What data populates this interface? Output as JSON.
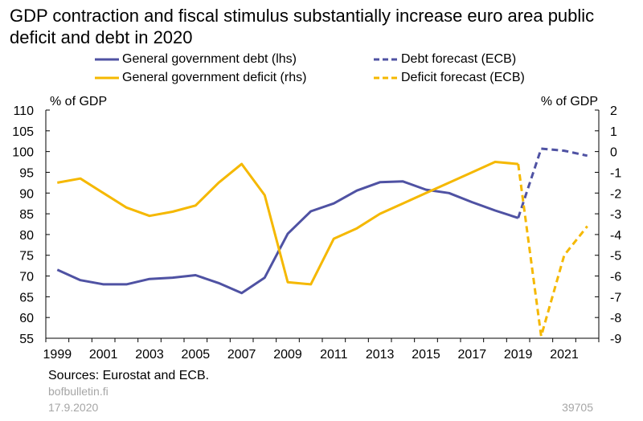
{
  "chart_data": {
    "type": "line",
    "title": "GDP contraction and fiscal stimulus substantially increase euro area public deficit and debt in 2020",
    "left_axis_label": "% of GDP",
    "right_axis_label": "% of GDP",
    "left_ylim": [
      55,
      110
    ],
    "left_ticks": [
      "110",
      "105",
      "100",
      "95",
      "90",
      "85",
      "80",
      "75",
      "70",
      "65",
      "60",
      "55"
    ],
    "right_ylim": [
      -9,
      2
    ],
    "right_ticks": [
      "2",
      "1",
      "0",
      "-1",
      "-2",
      "-3",
      "-4",
      "-5",
      "-6",
      "-7",
      "-8",
      "-9"
    ],
    "xlim": [
      1998.5,
      2022.5
    ],
    "x_ticks": [
      "1999",
      "2001",
      "2003",
      "2005",
      "2007",
      "2009",
      "2011",
      "2013",
      "2015",
      "2017",
      "2019",
      "2021"
    ],
    "grid": false,
    "legend_position": "top",
    "series": [
      {
        "name": "General government debt (lhs)",
        "axis": "left",
        "style": "solid",
        "color": "#4f52a3",
        "x": [
          1999,
          2000,
          2001,
          2002,
          2003,
          2004,
          2005,
          2006,
          2007,
          2008,
          2009,
          2010,
          2011,
          2012,
          2013,
          2014,
          2015,
          2016,
          2017,
          2018,
          2019
        ],
        "values": [
          71.5,
          69.0,
          68.0,
          68.0,
          69.3,
          69.6,
          70.2,
          68.3,
          65.9,
          69.6,
          80.2,
          85.6,
          87.5,
          90.6,
          92.6,
          92.8,
          90.8,
          90.0,
          87.8,
          85.8,
          84.0
        ]
      },
      {
        "name": "General government deficit (rhs)",
        "axis": "right",
        "style": "solid",
        "color": "#f5b800",
        "x": [
          1999,
          2000,
          2001,
          2002,
          2003,
          2004,
          2005,
          2006,
          2007,
          2008,
          2009,
          2010,
          2011,
          2012,
          2013,
          2014,
          2015,
          2016,
          2017,
          2018,
          2019
        ],
        "values": [
          -1.5,
          -1.3,
          -2.0,
          -2.7,
          -3.1,
          -2.9,
          -2.6,
          -1.5,
          -0.6,
          -2.1,
          -6.3,
          -6.4,
          -4.2,
          -3.7,
          -3.0,
          -2.5,
          -2.0,
          -1.5,
          -1.0,
          -0.5,
          -0.6
        ]
      },
      {
        "name": "Debt forecast (ECB)",
        "axis": "left",
        "style": "dashed",
        "color": "#4f52a3",
        "x": [
          2019,
          2020,
          2021,
          2022
        ],
        "values": [
          84.0,
          100.7,
          100.2,
          99.0
        ]
      },
      {
        "name": "Deficit forecast (ECB)",
        "axis": "right",
        "style": "dashed",
        "color": "#f5b800",
        "x": [
          2019,
          2020,
          2021,
          2022
        ],
        "values": [
          -0.6,
          -8.9,
          -5.0,
          -3.6
        ]
      }
    ]
  },
  "footer": {
    "sources": "Sources: Eurostat and ECB.",
    "site": "bofbulletin.fi",
    "date": "17.9.2020",
    "chart_id": "39705"
  }
}
